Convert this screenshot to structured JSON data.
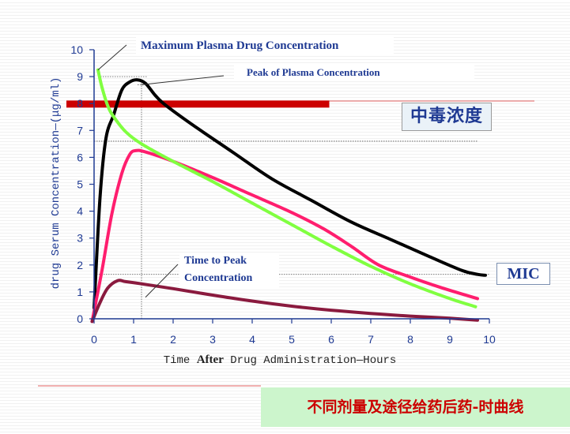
{
  "chart_data": {
    "type": "line",
    "xlabel": [
      "Time ",
      "After",
      " Drug Administration—Hours"
    ],
    "ylabel": "drug Serum Concentration—(μg/ml)",
    "xlim": [
      0,
      10
    ],
    "ylim": [
      0,
      10
    ],
    "x_ticks": [
      "0",
      "1",
      "2",
      "3",
      "4",
      "5",
      "6",
      "7",
      "8",
      "9",
      "10"
    ],
    "y_ticks": [
      "0",
      "1",
      "2",
      "3",
      "4",
      "5",
      "6",
      "7",
      "8",
      "9",
      "10"
    ],
    "grid": false,
    "series": [
      {
        "color": "#000000",
        "points": [
          [
            0,
            0.4
          ],
          [
            0.15,
            4.5
          ],
          [
            0.3,
            6.7
          ],
          [
            0.5,
            7.6
          ],
          [
            0.7,
            8.5
          ],
          [
            0.9,
            8.8
          ],
          [
            1.1,
            8.88
          ],
          [
            1.3,
            8.75
          ],
          [
            1.55,
            8.3
          ],
          [
            1.8,
            7.95
          ],
          [
            2.5,
            7.2
          ],
          [
            3.5,
            6.2
          ],
          [
            4.5,
            5.2
          ],
          [
            5.5,
            4.4
          ],
          [
            6.5,
            3.6
          ],
          [
            7.5,
            2.95
          ],
          [
            8.5,
            2.3
          ],
          [
            9.3,
            1.8
          ],
          [
            9.7,
            1.65
          ],
          [
            9.9,
            1.62
          ]
        ]
      },
      {
        "color": "#ff1e6e",
        "points": [
          [
            -0.05,
            -0.1
          ],
          [
            0.2,
            1.8
          ],
          [
            0.45,
            3.9
          ],
          [
            0.7,
            5.4
          ],
          [
            0.9,
            6.1
          ],
          [
            1.05,
            6.25
          ],
          [
            1.3,
            6.2
          ],
          [
            2,
            5.85
          ],
          [
            3,
            5.25
          ],
          [
            4,
            4.6
          ],
          [
            5,
            3.95
          ],
          [
            5.8,
            3.35
          ],
          [
            6.5,
            2.7
          ],
          [
            7.2,
            2.0
          ],
          [
            8,
            1.55
          ],
          [
            8.8,
            1.15
          ],
          [
            9.7,
            0.75
          ]
        ]
      },
      {
        "color": "#80ff40",
        "points": [
          [
            0.1,
            9.25
          ],
          [
            0.2,
            8.6
          ],
          [
            0.35,
            7.9
          ],
          [
            0.5,
            7.5
          ],
          [
            0.8,
            6.95
          ],
          [
            1.2,
            6.5
          ],
          [
            2,
            5.85
          ],
          [
            3,
            5.1
          ],
          [
            4,
            4.3
          ],
          [
            5,
            3.5
          ],
          [
            6,
            2.7
          ],
          [
            7,
            1.95
          ],
          [
            8,
            1.3
          ],
          [
            9,
            0.75
          ],
          [
            9.65,
            0.45
          ]
        ]
      },
      {
        "color": "#8a1a3e",
        "points": [
          [
            -0.05,
            -0.1
          ],
          [
            0.15,
            0.6
          ],
          [
            0.35,
            1.15
          ],
          [
            0.6,
            1.42
          ],
          [
            0.8,
            1.38
          ],
          [
            1.2,
            1.3
          ],
          [
            2,
            1.12
          ],
          [
            3,
            0.88
          ],
          [
            4,
            0.66
          ],
          [
            5,
            0.47
          ],
          [
            6,
            0.32
          ],
          [
            7,
            0.2
          ],
          [
            8,
            0.1
          ],
          [
            9,
            0.02
          ],
          [
            9.7,
            -0.05
          ]
        ]
      }
    ],
    "reference_lines": [
      {
        "orientation": "horizontal",
        "y": 9.0,
        "from_x": 0.1,
        "to_x": 1.35,
        "style": "dotted"
      },
      {
        "orientation": "horizontal",
        "y": 8.7,
        "from_x": 1.1,
        "to_x": 1.35,
        "style": "dotted"
      },
      {
        "orientation": "horizontal",
        "y": 6.6,
        "from_x": 0.0,
        "to_x": 9.7,
        "style": "dotted"
      },
      {
        "orientation": "horizontal",
        "y": 1.65,
        "from_x": 0.0,
        "to_x": 10.0,
        "style": "dotted"
      },
      {
        "orientation": "vertical",
        "x": 1.2,
        "from_y": 0,
        "to_y": 8.9,
        "style": "dotted"
      }
    ],
    "toxic_band": {
      "y": 7.98,
      "from_x": -0.7,
      "to_x": 5.95,
      "color": "#cc0000"
    },
    "annotations": [
      {
        "text": "Maximum Plasma Drug Concentration",
        "points_to": [
          0.1,
          9.25
        ]
      },
      {
        "text": "Peak of Plasma Concentration",
        "points_to": [
          1.2,
          8.7
        ]
      },
      {
        "text": [
          "Time to Peak",
          "Concentration"
        ],
        "points_to": [
          1.3,
          0.8
        ]
      }
    ]
  },
  "labels": {
    "callout_max": "Maximum Plasma Drug Concentration",
    "callout_peak": "Peak of Plasma Concentration",
    "callout_ttp_line1": "Time to Peak",
    "callout_ttp_line2": "Concentration",
    "toxic_label": "中毒浓度",
    "mic_label": "MIC",
    "footer_title": "不同剂量及途径给药后药-时曲线"
  },
  "colors": {
    "axis": "#1f3a93",
    "callout_text": "#1f3a93",
    "toxic_band": "#cc0000",
    "decor_line": "#e06060",
    "footer_bg": "#ccf5cc",
    "footer_text": "#cc0000"
  }
}
